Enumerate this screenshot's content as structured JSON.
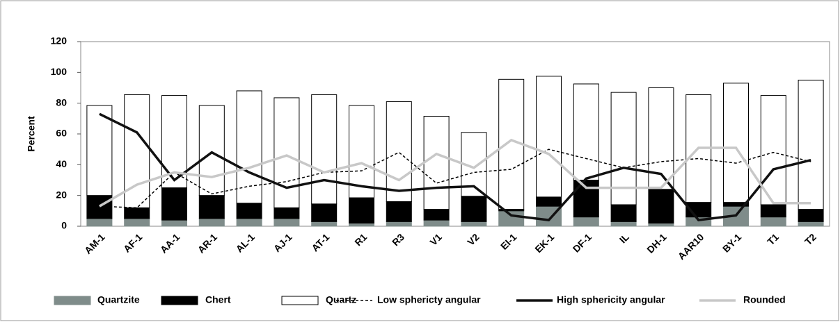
{
  "chart_data": {
    "type": "bar",
    "stacked": true,
    "y_label": "Percent",
    "categories": [
      "AM-1",
      "AF-1",
      "AA-1",
      "AR-1",
      "AL-1",
      "AJ-1",
      "AT-1",
      "R1",
      "R3",
      "V1",
      "V2",
      "EI-1",
      "EK-1",
      "DF-1",
      "IL",
      "DH-1",
      "AAR10",
      "BY-1",
      "T1",
      "T2"
    ],
    "ylim": [
      0,
      120
    ],
    "yticks": [
      0,
      20,
      40,
      60,
      80,
      100,
      120
    ],
    "series": [
      {
        "name": "Quartzite",
        "type": "bar",
        "color": "#7f8c8a",
        "values": [
          5,
          5,
          4,
          5,
          5,
          5,
          3,
          2,
          3,
          4,
          3,
          10,
          13,
          6,
          3,
          2,
          6,
          13,
          6,
          3
        ]
      },
      {
        "name": "Chert",
        "type": "bar",
        "color": "#000000",
        "values": [
          15,
          7,
          21,
          15,
          10,
          7,
          11.5,
          16.5,
          13,
          7,
          16.5,
          1,
          6,
          24,
          11,
          22,
          9.5,
          2.5,
          8,
          8
        ]
      },
      {
        "name": "Quartz",
        "type": "bar",
        "color": "#ffffff",
        "values": [
          58.5,
          73.5,
          60,
          58.5,
          73,
          71.5,
          71,
          60,
          65,
          60.5,
          41.5,
          84.5,
          78.5,
          62.5,
          73,
          66,
          70,
          77.5,
          71,
          84
        ]
      },
      {
        "name": "Low sphericty angular",
        "type": "line",
        "style": "dotted",
        "color": "#000000",
        "values": [
          13,
          12,
          35,
          21,
          26,
          29,
          35,
          36,
          48,
          28,
          35,
          37,
          50,
          44,
          38,
          42,
          44,
          41,
          48,
          42
        ]
      },
      {
        "name": "High sphericity angular",
        "type": "line",
        "style": "solid",
        "color": "#111111",
        "values": [
          73,
          61,
          30,
          48,
          35,
          25,
          30,
          26,
          23,
          25,
          26,
          7,
          4,
          31,
          38,
          34,
          4,
          7,
          37,
          43
        ]
      },
      {
        "name": "Rounded",
        "type": "line",
        "style": "solid",
        "color": "#c8c8c8",
        "values": [
          13,
          27,
          35,
          32,
          38,
          46,
          35,
          41,
          30,
          47,
          38,
          56,
          47,
          25,
          25,
          25,
          51,
          51,
          15,
          15
        ]
      }
    ]
  }
}
